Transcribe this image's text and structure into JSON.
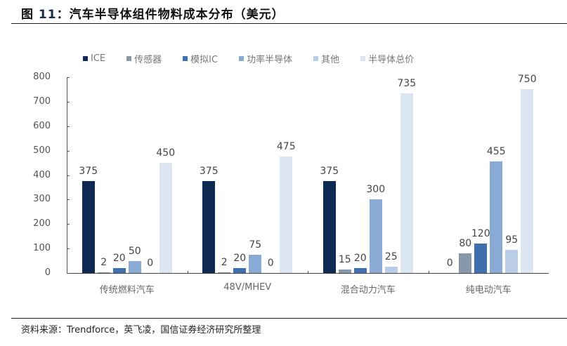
{
  "header": {
    "figure_prefix": "图",
    "figure_number": "11",
    "title": "：汽车半导体组件物料成本分布（美元）"
  },
  "footer": {
    "source": "资料来源：Trendforce，英飞凌，国信证券经济研究所整理"
  },
  "colors": {
    "ICE": "#0f2a52",
    "sensor": "#8898ab",
    "analog_ic": "#3f6fae",
    "power_semi": "#8aaad6",
    "other": "#b9cde8",
    "semi_total": "#dce6f3"
  },
  "chart_data": {
    "type": "bar",
    "title": "汽车半导体组件物料成本分布（美元）",
    "xlabel": "",
    "ylabel": "",
    "ylim": [
      0,
      800
    ],
    "yticks": [
      0,
      100,
      200,
      300,
      400,
      500,
      600,
      700,
      800
    ],
    "grid": false,
    "legend_position": "top",
    "categories": [
      "传统燃料汽车",
      "48V/MHEV",
      "混合动力汽车",
      "纯电动汽车"
    ],
    "series": [
      {
        "name": "ICE",
        "values": [
          375,
          375,
          375,
          0
        ]
      },
      {
        "name": "传感器",
        "values": [
          2,
          2,
          15,
          80
        ]
      },
      {
        "name": "模拟IC",
        "values": [
          20,
          20,
          20,
          120
        ]
      },
      {
        "name": "功率半导体",
        "values": [
          50,
          75,
          300,
          455
        ]
      },
      {
        "name": "其他",
        "values": [
          0,
          0,
          25,
          95
        ]
      },
      {
        "name": "半导体总价",
        "values": [
          450,
          475,
          735,
          750
        ]
      }
    ]
  }
}
